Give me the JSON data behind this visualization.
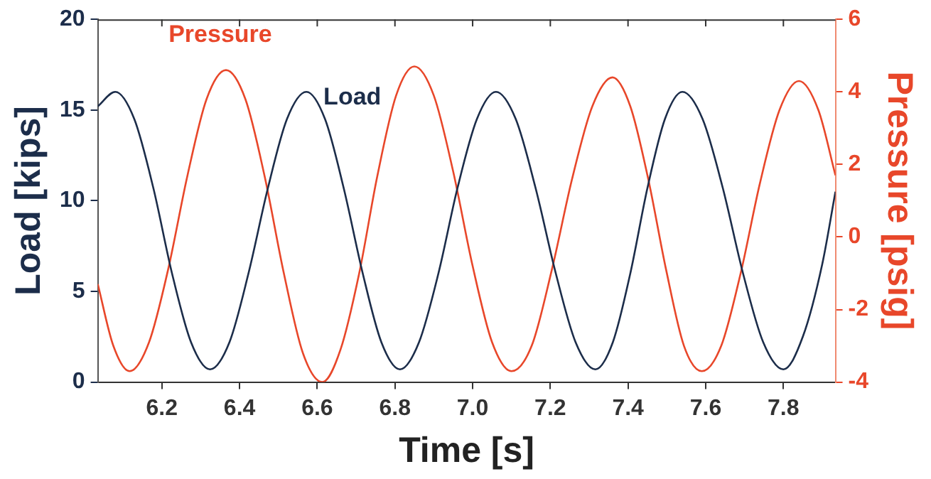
{
  "chart_data": {
    "type": "line",
    "xlabel": "Time [s]",
    "ylabel": "Load [kips]",
    "y2label": "Pressure [psig]",
    "xlim": [
      6.035,
      7.934
    ],
    "xticks": [
      6.2,
      6.4,
      6.6,
      6.8,
      {
        "value": 7.0,
        "label": "7.0"
      },
      7.2,
      7.4,
      7.6,
      7.8
    ],
    "ylim": [
      0,
      20
    ],
    "yticks": [
      0,
      5,
      10,
      15,
      20
    ],
    "y2lim": [
      -4,
      6
    ],
    "y2ticks": [
      -4,
      -2,
      0,
      2,
      4,
      6
    ],
    "grid": false,
    "legend": false,
    "marker": "none",
    "line_style": "solid",
    "series": [
      {
        "name": "Load",
        "color": "#1c2d4a",
        "x": [
          6.035,
          6.08,
          6.129,
          6.178,
          6.226,
          6.275,
          6.324,
          6.374,
          6.423,
          6.473,
          6.522,
          6.572,
          6.62,
          6.668,
          6.717,
          6.765,
          6.813,
          6.862,
          6.912,
          6.961,
          7.011,
          7.06,
          7.111,
          7.162,
          7.214,
          7.265,
          7.316,
          7.361,
          7.406,
          7.45,
          7.495,
          7.54,
          7.592,
          7.644,
          7.696,
          7.748,
          7.8,
          7.85,
          7.9,
          7.934
        ],
        "values": [
          15.2,
          16.0,
          14.5,
          10.7,
          6.0,
          2.2,
          0.7,
          2.2,
          6.0,
          10.7,
          14.5,
          16.0,
          14.5,
          10.7,
          6.0,
          2.2,
          0.7,
          2.2,
          6.0,
          10.7,
          14.5,
          16.0,
          14.5,
          10.7,
          6.0,
          2.2,
          0.7,
          2.2,
          6.0,
          10.7,
          14.5,
          16.0,
          14.5,
          10.7,
          6.0,
          2.2,
          0.7,
          2.5,
          6.5,
          10.5
        ]
      },
      {
        "name": "Pressure",
        "color": "#e8472a",
        "axis": "y2",
        "x": [
          6.035,
          6.075,
          6.117,
          6.167,
          6.216,
          6.266,
          6.315,
          6.365,
          6.415,
          6.464,
          6.514,
          6.563,
          6.613,
          6.66,
          6.708,
          6.755,
          6.803,
          6.85,
          6.9,
          6.95,
          7.0,
          7.05,
          7.1,
          7.152,
          7.204,
          7.256,
          7.308,
          7.36,
          7.406,
          7.452,
          7.498,
          7.544,
          7.59,
          7.64,
          7.69,
          7.74,
          7.79,
          7.84,
          7.89,
          7.934
        ],
        "values": [
          -1.3,
          -3.0,
          -3.7,
          -2.9,
          -0.9,
          1.7,
          3.8,
          4.6,
          3.8,
          1.7,
          -1.0,
          -3.2,
          -4.0,
          -3.1,
          -1.0,
          1.7,
          3.9,
          4.7,
          3.9,
          1.8,
          -0.8,
          -2.9,
          -3.7,
          -3.0,
          -0.9,
          1.6,
          3.6,
          4.4,
          3.6,
          1.6,
          -0.9,
          -3.0,
          -3.7,
          -3.0,
          -1.0,
          1.5,
          3.5,
          4.3,
          3.5,
          1.7
        ]
      }
    ]
  }
}
